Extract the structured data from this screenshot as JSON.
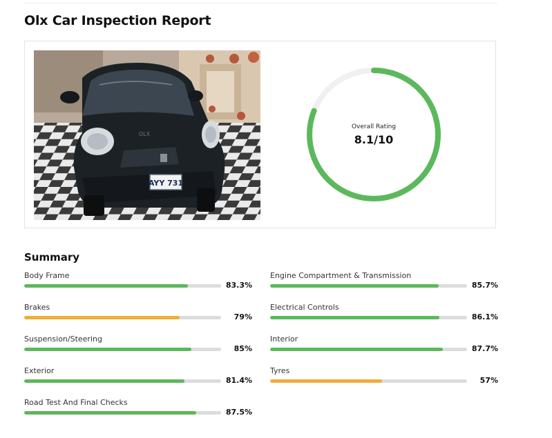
{
  "report": {
    "title": "Olx Car Inspection Report"
  },
  "photo": {
    "plate_text": "AYY 731",
    "watermark_text": "OLX"
  },
  "rating": {
    "label": "Overall Rating",
    "value_text": "8.1/10",
    "value": 8.1,
    "max": 10,
    "ring_color": "#5cb85c",
    "track_color": "#f0f0f0"
  },
  "summary": {
    "title": "Summary",
    "colors": {
      "good": "#5cb85c",
      "warn": "#f0ad3c",
      "track": "#dcdcdc"
    },
    "left": [
      {
        "name": "Body Frame",
        "percent_text": "83.3%",
        "percent": 83.3,
        "status": "good"
      },
      {
        "name": "Brakes",
        "percent_text": "79%",
        "percent": 79,
        "status": "warn"
      },
      {
        "name": "Suspension/Steering",
        "percent_text": "85%",
        "percent": 85,
        "status": "good"
      },
      {
        "name": "Exterior",
        "percent_text": "81.4%",
        "percent": 81.4,
        "status": "good"
      },
      {
        "name": "Road Test And Final Checks",
        "percent_text": "87.5%",
        "percent": 87.5,
        "status": "good"
      }
    ],
    "right": [
      {
        "name": "Engine Compartment & Transmission",
        "percent_text": "85.7%",
        "percent": 85.7,
        "status": "good"
      },
      {
        "name": "Electrical Controls",
        "percent_text": "86.1%",
        "percent": 86.1,
        "status": "good"
      },
      {
        "name": "Interior",
        "percent_text": "87.7%",
        "percent": 87.7,
        "status": "good"
      },
      {
        "name": "Tyres",
        "percent_text": "57%",
        "percent": 57,
        "status": "warn"
      }
    ]
  }
}
